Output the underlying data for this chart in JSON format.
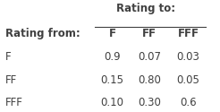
{
  "title": "Rating to:",
  "col_headers": [
    "F",
    "FF",
    "FFF"
  ],
  "row_label_header": "Rating from:",
  "row_labels": [
    "F",
    "FF",
    "FFF"
  ],
  "matrix": [
    [
      "0.9",
      "0.07",
      "0.03"
    ],
    [
      "0.15",
      "0.80",
      "0.05"
    ],
    [
      "0.10",
      "0.30",
      "0.6"
    ]
  ],
  "background_color": "#ffffff",
  "text_color": "#404040",
  "font_size": 8.5,
  "header_font_size": 8.5
}
